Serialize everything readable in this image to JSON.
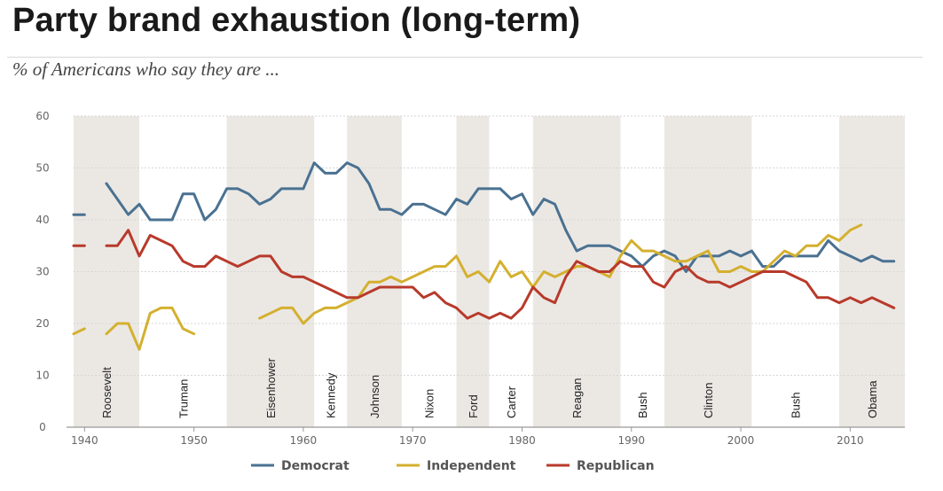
{
  "header": {
    "title": "Party brand exhaustion (long-term)",
    "subtitle": "% of Americans who say they are ..."
  },
  "chart_data": {
    "type": "line",
    "xlim": [
      1939,
      2015
    ],
    "ylim": [
      0,
      60
    ],
    "x_ticks": [
      1940,
      1950,
      1960,
      1970,
      1980,
      1990,
      2000,
      2010
    ],
    "y_ticks": [
      0,
      10,
      20,
      30,
      40,
      50,
      60
    ],
    "grid": true,
    "legend_position": "bottom",
    "presidencies": [
      {
        "name": "Roosevelt",
        "start": 1939,
        "end": 1945,
        "shaded": true
      },
      {
        "name": "Truman",
        "start": 1945,
        "end": 1953,
        "shaded": false
      },
      {
        "name": "Eisenhower",
        "start": 1953,
        "end": 1961,
        "shaded": true
      },
      {
        "name": "Kennedy",
        "start": 1961,
        "end": 1964,
        "shaded": false
      },
      {
        "name": "Johnson",
        "start": 1964,
        "end": 1969,
        "shaded": true
      },
      {
        "name": "Nixon",
        "start": 1969,
        "end": 1974,
        "shaded": false
      },
      {
        "name": "Ford",
        "start": 1974,
        "end": 1977,
        "shaded": true
      },
      {
        "name": "Carter",
        "start": 1977,
        "end": 1981,
        "shaded": false
      },
      {
        "name": "Reagan",
        "start": 1981,
        "end": 1989,
        "shaded": true
      },
      {
        "name": "Bush",
        "start": 1989,
        "end": 1993,
        "shaded": false
      },
      {
        "name": "Clinton",
        "start": 1993,
        "end": 2001,
        "shaded": true
      },
      {
        "name": "Bush",
        "start": 2001,
        "end": 2009,
        "shaded": false
      },
      {
        "name": "Obama",
        "start": 2009,
        "end": 2015,
        "shaded": true
      }
    ],
    "series": [
      {
        "name": "Democrat",
        "color": "#4a7191",
        "segments": [
          [
            [
              1939,
              41
            ],
            [
              1940,
              41
            ]
          ],
          [
            [
              1942,
              47
            ],
            [
              1943,
              44
            ],
            [
              1944,
              41
            ],
            [
              1945,
              43
            ],
            [
              1946,
              40
            ],
            [
              1947,
              40
            ],
            [
              1948,
              40
            ],
            [
              1949,
              45
            ],
            [
              1950,
              45
            ],
            [
              1951,
              40
            ],
            [
              1952,
              42
            ],
            [
              1953,
              46
            ],
            [
              1954,
              46
            ],
            [
              1955,
              45
            ],
            [
              1956,
              43
            ],
            [
              1957,
              44
            ],
            [
              1958,
              46
            ],
            [
              1959,
              46
            ],
            [
              1960,
              46
            ],
            [
              1961,
              51
            ],
            [
              1962,
              49
            ],
            [
              1963,
              49
            ],
            [
              1964,
              51
            ],
            [
              1965,
              50
            ],
            [
              1966,
              47
            ],
            [
              1967,
              42
            ],
            [
              1968,
              42
            ],
            [
              1969,
              41
            ],
            [
              1970,
              43
            ],
            [
              1971,
              43
            ],
            [
              1972,
              42
            ],
            [
              1973,
              41
            ],
            [
              1974,
              44
            ],
            [
              1975,
              43
            ],
            [
              1976,
              46
            ],
            [
              1977,
              46
            ],
            [
              1978,
              46
            ],
            [
              1979,
              44
            ],
            [
              1980,
              45
            ],
            [
              1981,
              41
            ],
            [
              1982,
              44
            ],
            [
              1983,
              43
            ],
            [
              1984,
              38
            ],
            [
              1985,
              34
            ],
            [
              1986,
              35
            ],
            [
              1987,
              35
            ],
            [
              1988,
              35
            ],
            [
              1989,
              34
            ],
            [
              1990,
              33
            ],
            [
              1991,
              31
            ],
            [
              1992,
              33
            ],
            [
              1993,
              34
            ],
            [
              1994,
              33
            ],
            [
              1995,
              30
            ],
            [
              1996,
              33
            ],
            [
              1997,
              33
            ],
            [
              1998,
              33
            ],
            [
              1999,
              34
            ],
            [
              2000,
              33
            ],
            [
              2001,
              34
            ],
            [
              2002,
              31
            ],
            [
              2003,
              31
            ],
            [
              2004,
              33
            ],
            [
              2005,
              33
            ],
            [
              2006,
              33
            ],
            [
              2007,
              33
            ],
            [
              2008,
              36
            ],
            [
              2009,
              34
            ],
            [
              2010,
              33
            ],
            [
              2011,
              32
            ],
            [
              2012,
              33
            ],
            [
              2013,
              32
            ],
            [
              2014,
              32
            ]
          ]
        ]
      },
      {
        "name": "Independent",
        "color": "#d4b02f",
        "segments": [
          [
            [
              1939,
              18
            ],
            [
              1940,
              19
            ]
          ],
          [
            [
              1942,
              18
            ],
            [
              1943,
              20
            ],
            [
              1944,
              20
            ],
            [
              1945,
              15
            ],
            [
              1946,
              22
            ],
            [
              1947,
              23
            ],
            [
              1948,
              23
            ],
            [
              1949,
              19
            ],
            [
              1950,
              18
            ]
          ],
          [
            [
              1956,
              21
            ],
            [
              1957,
              22
            ],
            [
              1958,
              23
            ],
            [
              1959,
              23
            ],
            [
              1960,
              20
            ],
            [
              1961,
              22
            ],
            [
              1962,
              23
            ],
            [
              1963,
              23
            ],
            [
              1964,
              24
            ],
            [
              1965,
              25
            ],
            [
              1966,
              28
            ],
            [
              1967,
              28
            ],
            [
              1968,
              29
            ],
            [
              1969,
              28
            ],
            [
              1970,
              29
            ],
            [
              1971,
              30
            ],
            [
              1972,
              31
            ],
            [
              1973,
              31
            ],
            [
              1974,
              33
            ],
            [
              1975,
              29
            ],
            [
              1976,
              30
            ],
            [
              1977,
              28
            ],
            [
              1978,
              32
            ],
            [
              1979,
              29
            ],
            [
              1980,
              30
            ],
            [
              1981,
              27
            ],
            [
              1982,
              30
            ],
            [
              1983,
              29
            ],
            [
              1984,
              30
            ],
            [
              1985,
              31
            ],
            [
              1986,
              31
            ],
            [
              1987,
              30
            ],
            [
              1988,
              29
            ],
            [
              1989,
              33
            ],
            [
              1990,
              36
            ],
            [
              1991,
              34
            ],
            [
              1992,
              34
            ],
            [
              1993,
              33
            ],
            [
              1994,
              32
            ],
            [
              1995,
              32
            ],
            [
              1996,
              33
            ],
            [
              1997,
              34
            ],
            [
              1998,
              30
            ],
            [
              1999,
              30
            ],
            [
              2000,
              31
            ],
            [
              2001,
              30
            ],
            [
              2002,
              30
            ],
            [
              2003,
              32
            ],
            [
              2004,
              34
            ],
            [
              2005,
              33
            ],
            [
              2006,
              35
            ],
            [
              2007,
              35
            ],
            [
              2008,
              37
            ],
            [
              2009,
              36
            ],
            [
              2010,
              38
            ],
            [
              2011,
              39
            ]
          ]
        ]
      },
      {
        "name": "Republican",
        "color": "#b83a2b",
        "segments": [
          [
            [
              1939,
              35
            ],
            [
              1940,
              35
            ]
          ],
          [
            [
              1942,
              35
            ],
            [
              1943,
              35
            ],
            [
              1944,
              38
            ],
            [
              1945,
              33
            ],
            [
              1946,
              37
            ],
            [
              1947,
              36
            ],
            [
              1948,
              35
            ],
            [
              1949,
              32
            ],
            [
              1950,
              31
            ],
            [
              1951,
              31
            ],
            [
              1952,
              33
            ],
            [
              1953,
              32
            ],
            [
              1954,
              31
            ],
            [
              1955,
              32
            ],
            [
              1956,
              33
            ],
            [
              1957,
              33
            ],
            [
              1958,
              30
            ],
            [
              1959,
              29
            ],
            [
              1960,
              29
            ],
            [
              1961,
              28
            ],
            [
              1962,
              27
            ],
            [
              1963,
              26
            ],
            [
              1964,
              25
            ],
            [
              1965,
              25
            ],
            [
              1966,
              26
            ],
            [
              1967,
              27
            ],
            [
              1968,
              27
            ],
            [
              1969,
              27
            ],
            [
              1970,
              27
            ],
            [
              1971,
              25
            ],
            [
              1972,
              26
            ],
            [
              1973,
              24
            ],
            [
              1974,
              23
            ],
            [
              1975,
              21
            ],
            [
              1976,
              22
            ],
            [
              1977,
              21
            ],
            [
              1978,
              22
            ],
            [
              1979,
              21
            ],
            [
              1980,
              23
            ],
            [
              1981,
              27
            ],
            [
              1982,
              25
            ],
            [
              1983,
              24
            ],
            [
              1984,
              29
            ],
            [
              1985,
              32
            ],
            [
              1986,
              31
            ],
            [
              1987,
              30
            ],
            [
              1988,
              30
            ],
            [
              1989,
              32
            ],
            [
              1990,
              31
            ],
            [
              1991,
              31
            ],
            [
              1992,
              28
            ],
            [
              1993,
              27
            ],
            [
              1994,
              30
            ],
            [
              1995,
              31
            ],
            [
              1996,
              29
            ],
            [
              1997,
              28
            ],
            [
              1998,
              28
            ],
            [
              1999,
              27
            ],
            [
              2000,
              28
            ],
            [
              2001,
              29
            ],
            [
              2002,
              30
            ],
            [
              2003,
              30
            ],
            [
              2004,
              30
            ],
            [
              2005,
              29
            ],
            [
              2006,
              28
            ],
            [
              2007,
              25
            ],
            [
              2008,
              25
            ],
            [
              2009,
              24
            ],
            [
              2010,
              25
            ],
            [
              2011,
              24
            ],
            [
              2012,
              25
            ],
            [
              2013,
              24
            ],
            [
              2014,
              23
            ]
          ]
        ]
      }
    ]
  }
}
